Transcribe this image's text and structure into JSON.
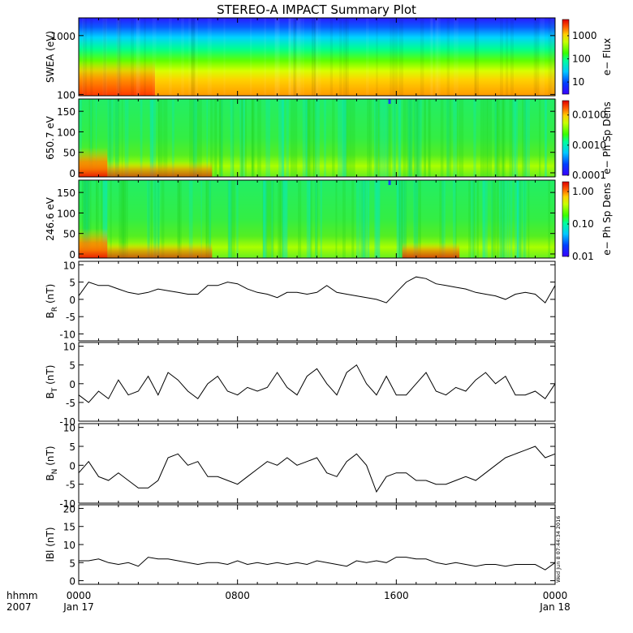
{
  "title": "STEREO-A IMPACT Summary Plot",
  "stamp": "Wed Jun  8 07:44:34 2016",
  "time_axis": {
    "row1_label": "hhmm",
    "row2_label": "2007",
    "ticks": [
      {
        "hour": 0,
        "time": "0000",
        "date": "Jan 17"
      },
      {
        "hour": 8,
        "time": "0800",
        "date": ""
      },
      {
        "hour": 16,
        "time": "1600",
        "date": ""
      },
      {
        "hour": 24,
        "time": "0000",
        "date": "Jan 18"
      }
    ]
  },
  "chart_data": [
    {
      "type": "heatmap",
      "ylabel": "SWEA (eV)",
      "yscale": "log",
      "ylim": [
        95,
        2000
      ],
      "yticks": [
        {
          "v": 1000,
          "label": "1000"
        },
        {
          "v": 100,
          "label": "100"
        }
      ],
      "colorbar_label": "e− Flux",
      "colorbar_scale": "log",
      "colorbar_range": [
        3,
        5000
      ],
      "colorbar_ticks": [
        {
          "v": 1000,
          "label": "1000"
        },
        {
          "v": 100,
          "label": "100"
        },
        {
          "v": 10,
          "label": "10"
        }
      ],
      "xlim_hours": [
        0,
        24
      ]
    },
    {
      "type": "heatmap",
      "ylabel": "650.7 eV",
      "ylim": [
        -10,
        180
      ],
      "yticks": [
        {
          "v": 0,
          "label": "0"
        },
        {
          "v": 50,
          "label": "50"
        },
        {
          "v": 100,
          "label": "100"
        },
        {
          "v": 150,
          "label": "150"
        }
      ],
      "colorbar_label": "e− Ph Sp Dens",
      "colorbar_scale": "log",
      "colorbar_range": [
        0.0001,
        0.03
      ],
      "colorbar_ticks": [
        {
          "v": 0.01,
          "label": "0.0100"
        },
        {
          "v": 0.001,
          "label": "0.0010"
        },
        {
          "v": 0.0001,
          "label": "0.0001"
        }
      ],
      "xlim_hours": [
        0,
        24
      ]
    },
    {
      "type": "heatmap",
      "ylabel": "246.6 eV",
      "ylim": [
        -10,
        180
      ],
      "yticks": [
        {
          "v": 0,
          "label": "0"
        },
        {
          "v": 50,
          "label": "50"
        },
        {
          "v": 100,
          "label": "100"
        },
        {
          "v": 150,
          "label": "150"
        }
      ],
      "colorbar_label": "e− Ph Sp Dens",
      "colorbar_scale": "log",
      "colorbar_range": [
        0.01,
        2
      ],
      "colorbar_ticks": [
        {
          "v": 1,
          "label": "1.00"
        },
        {
          "v": 0.1,
          "label": "0.10"
        },
        {
          "v": 0.01,
          "label": "0.01"
        }
      ],
      "xlim_hours": [
        0,
        24
      ]
    },
    {
      "type": "line",
      "ylabel": "B",
      "ylabel_sub": "R",
      "ylabel_unit": "(nT)",
      "ylim": [
        -12,
        11
      ],
      "yticks": [
        {
          "v": -10,
          "label": "-10"
        },
        {
          "v": -5,
          "label": "-5"
        },
        {
          "v": 0,
          "label": "0"
        },
        {
          "v": 5,
          "label": "5"
        },
        {
          "v": 10,
          "label": "10"
        }
      ],
      "x_hours": [
        0,
        0.5,
        1,
        1.5,
        2,
        2.5,
        3,
        3.5,
        4,
        4.5,
        5,
        5.5,
        6,
        6.5,
        7,
        7.5,
        8,
        8.5,
        9,
        9.5,
        10,
        10.5,
        11,
        11.5,
        12,
        12.5,
        13,
        13.5,
        14,
        14.5,
        15,
        15.5,
        16,
        16.5,
        17,
        17.5,
        18,
        18.5,
        19,
        19.5,
        20,
        20.5,
        21,
        21.5,
        22,
        22.5,
        23,
        23.5,
        24
      ],
      "y": [
        1,
        5,
        4,
        4,
        3,
        2,
        1.5,
        2,
        3,
        2.5,
        2,
        1.5,
        1.5,
        4,
        4,
        5,
        4.5,
        3,
        2,
        1.5,
        0.5,
        2,
        2,
        1.5,
        2,
        4,
        2,
        1.5,
        1,
        0.5,
        0,
        -1,
        2,
        5,
        6.5,
        6,
        4.5,
        4,
        3.5,
        3,
        2,
        1.5,
        1,
        0,
        1.5,
        2,
        1.5,
        -1,
        4
      ]
    },
    {
      "type": "line",
      "ylabel": "B",
      "ylabel_sub": "T",
      "ylabel_unit": "(nT)",
      "ylim": [
        -10,
        11
      ],
      "yticks": [
        {
          "v": -10,
          "label": "-10"
        },
        {
          "v": -5,
          "label": "-5"
        },
        {
          "v": 0,
          "label": "0"
        },
        {
          "v": 5,
          "label": "5"
        },
        {
          "v": 10,
          "label": "10"
        }
      ],
      "x_hours": [
        0,
        0.5,
        1,
        1.5,
        2,
        2.5,
        3,
        3.5,
        4,
        4.5,
        5,
        5.5,
        6,
        6.5,
        7,
        7.5,
        8,
        8.5,
        9,
        9.5,
        10,
        10.5,
        11,
        11.5,
        12,
        12.5,
        13,
        13.5,
        14,
        14.5,
        15,
        15.5,
        16,
        16.5,
        17,
        17.5,
        18,
        18.5,
        19,
        19.5,
        20,
        20.5,
        21,
        21.5,
        22,
        22.5,
        23,
        23.5,
        24
      ],
      "y": [
        -3,
        -5,
        -2,
        -4,
        1,
        -3,
        -2,
        2,
        -3,
        3,
        1,
        -2,
        -4,
        0,
        2,
        -2,
        -3,
        -1,
        -2,
        -1,
        3,
        -1,
        -3,
        2,
        4,
        0,
        -3,
        3,
        5,
        0,
        -3,
        2,
        -3,
        -3,
        0,
        3,
        -2,
        -3,
        -1,
        -2,
        1,
        3,
        0,
        2,
        -3,
        -3,
        -2,
        -4,
        0
      ]
    },
    {
      "type": "line",
      "ylabel": "B",
      "ylabel_sub": "N",
      "ylabel_unit": "(nT)",
      "ylim": [
        -10,
        11
      ],
      "yticks": [
        {
          "v": -10,
          "label": "-10"
        },
        {
          "v": -5,
          "label": "-5"
        },
        {
          "v": 0,
          "label": "0"
        },
        {
          "v": 5,
          "label": "5"
        },
        {
          "v": 10,
          "label": "10"
        }
      ],
      "x_hours": [
        0,
        0.5,
        1,
        1.5,
        2,
        2.5,
        3,
        3.5,
        4,
        4.5,
        5,
        5.5,
        6,
        6.5,
        7,
        7.5,
        8,
        8.5,
        9,
        9.5,
        10,
        10.5,
        11,
        11.5,
        12,
        12.5,
        13,
        13.5,
        14,
        14.5,
        15,
        15.5,
        16,
        16.5,
        17,
        17.5,
        18,
        18.5,
        19,
        19.5,
        20,
        20.5,
        21,
        21.5,
        22,
        22.5,
        23,
        23.5,
        24
      ],
      "y": [
        -2,
        1,
        -3,
        -4,
        -2,
        -4,
        -6,
        -6,
        -4,
        2,
        3,
        0,
        1,
        -3,
        -3,
        -4,
        -5,
        -3,
        -1,
        1,
        0,
        2,
        0,
        1,
        2,
        -2,
        -3,
        1,
        3,
        0,
        -7,
        -3,
        -2,
        -2,
        -4,
        -4,
        -5,
        -5,
        -4,
        -3,
        -4,
        -2,
        0,
        2,
        3,
        4,
        5,
        2,
        3
      ]
    },
    {
      "type": "line",
      "ylabel": "lBl",
      "ylabel_sub": "",
      "ylabel_unit": "(nT)",
      "ylim": [
        -1,
        21
      ],
      "yticks": [
        {
          "v": 0,
          "label": "0"
        },
        {
          "v": 5,
          "label": "5"
        },
        {
          "v": 10,
          "label": "10"
        },
        {
          "v": 15,
          "label": "15"
        },
        {
          "v": 20,
          "label": "20"
        }
      ],
      "x_hours": [
        0,
        0.5,
        1,
        1.5,
        2,
        2.5,
        3,
        3.5,
        4,
        4.5,
        5,
        5.5,
        6,
        6.5,
        7,
        7.5,
        8,
        8.5,
        9,
        9.5,
        10,
        10.5,
        11,
        11.5,
        12,
        12.5,
        13,
        13.5,
        14,
        14.5,
        15,
        15.5,
        16,
        16.5,
        17,
        17.5,
        18,
        18.5,
        19,
        19.5,
        20,
        20.5,
        21,
        21.5,
        22,
        22.5,
        23,
        23.5,
        24
      ],
      "y": [
        5.5,
        5.5,
        6,
        5,
        4.5,
        5,
        4,
        6.5,
        6,
        6,
        5.5,
        5,
        4.5,
        5,
        5,
        4.5,
        5.5,
        4.5,
        5,
        4.5,
        5,
        4.5,
        5,
        4.5,
        5.5,
        5,
        4.5,
        4,
        5.5,
        5,
        5.5,
        5,
        6.5,
        6.5,
        6,
        6,
        5,
        4.5,
        5,
        4.5,
        4,
        4.5,
        4.5,
        4,
        4.5,
        4.5,
        4.5,
        3,
        5
      ]
    }
  ]
}
